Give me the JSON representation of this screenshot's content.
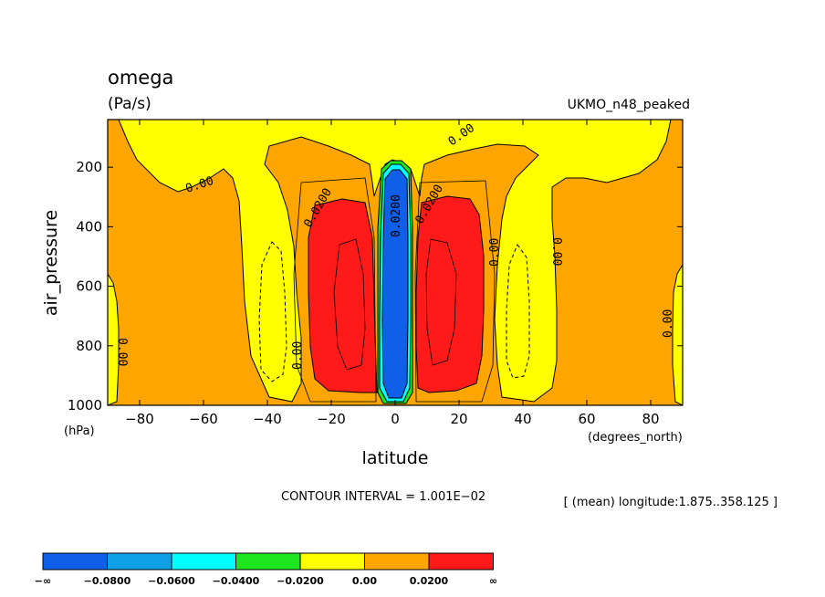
{
  "chart_data": {
    "type": "contour",
    "title": "omega",
    "units": "(Pa/s)",
    "dataset": "UKMO_n48_peaked",
    "xlabel": "latitude",
    "xunits": "(degrees_north)",
    "ylabel": "air_pressure",
    "yunits": "(hPa)",
    "xlim": [
      -90,
      90
    ],
    "ylim": [
      1000,
      40
    ],
    "xticks": [
      -80,
      -60,
      -40,
      -20,
      0,
      20,
      40,
      60,
      80
    ],
    "xtick_labels": [
      "−80",
      "−60",
      "−40",
      "−20",
      "0",
      "20",
      "40",
      "60",
      "80"
    ],
    "yticks": [
      200,
      400,
      600,
      800,
      1000
    ],
    "ytick_labels": [
      "200",
      "400",
      "600",
      "800",
      "1000"
    ],
    "contour_interval_text": "CONTOUR INTERVAL = 1.001E−02",
    "mean_text": "[ (mean) longitude:1.875..358.125 ]",
    "contour_labels": [
      "0.00",
      "0.0200",
      "0.0200",
      "0.00",
      "0.00",
      "0.00",
      "0.0200",
      "0.00",
      "0.00",
      "0.00",
      "0.00",
      "0.0200",
      "0.00"
    ],
    "colorbar": {
      "bin_colors": [
        "#0f5fe8",
        "#0fa0e6",
        "#00ffff",
        "#1ee61e",
        "#ffff00",
        "#ffa500",
        "#ff1a1a"
      ],
      "labels": [
        "−∞",
        "−0.0800",
        "−0.0600",
        "−0.0400",
        "−0.0200",
        "0.00",
        "0.0200",
        "∞"
      ]
    },
    "regions": [
      {
        "level": "0.00 to 0.0200",
        "area": "background (most of domain)"
      },
      {
        "level": "-0.0200 to 0.00",
        "area": "subtropical descending tongues ~±35–50°N and polar caps"
      },
      {
        "level": "> 0.0200",
        "area": "cells ~−30..−5 and 5..30 latitude, 300–950 hPa"
      },
      {
        "level": "< -0.0800",
        "area": "equatorial column −4..4 latitude, 180–1000 hPa"
      }
    ]
  }
}
